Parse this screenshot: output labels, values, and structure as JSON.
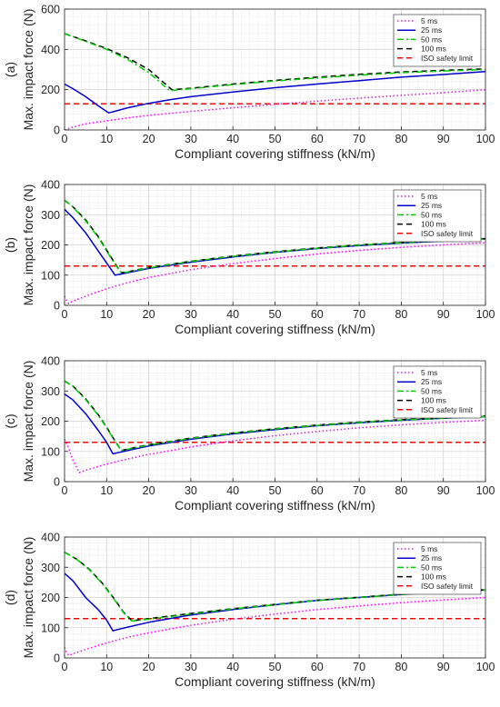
{
  "figure": {
    "panels_count": 4
  },
  "chart_data": [
    {
      "type": "line",
      "panel_label": "(a)",
      "xlabel": "Compliant covering stiffness (kN/m)",
      "ylabel": "Max. impact force (N)",
      "xlim": [
        0,
        100
      ],
      "ylim": [
        0,
        600
      ],
      "xticks": [
        0,
        10,
        20,
        30,
        40,
        50,
        60,
        70,
        80,
        90,
        100
      ],
      "yticks": [
        0,
        200,
        400,
        600
      ],
      "grid": true,
      "minor_grid": true,
      "legend_position": "top-right",
      "series": [
        {
          "name": "5 ms",
          "color": "#ff00ff",
          "dash": "dot",
          "x": [
            0,
            2,
            5,
            10,
            15,
            20,
            30,
            40,
            50,
            60,
            70,
            80,
            90,
            100
          ],
          "y": [
            0,
            14,
            30,
            45,
            60,
            72,
            92,
            110,
            127,
            143,
            158,
            172,
            185,
            200
          ]
        },
        {
          "name": "25 ms",
          "color": "#0000cc",
          "dash": "solid",
          "x": [
            0,
            2,
            5,
            8,
            10.5,
            12,
            15,
            20,
            25,
            30,
            40,
            50,
            60,
            70,
            80,
            90,
            100
          ],
          "y": [
            228,
            205,
            165,
            120,
            85,
            93,
            110,
            132,
            150,
            165,
            188,
            210,
            228,
            245,
            262,
            275,
            290
          ]
        },
        {
          "name": "50 ms",
          "color": "#00cc00",
          "dash": "dashdot",
          "x": [
            0,
            5,
            10,
            15,
            20,
            25,
            26,
            30,
            40,
            50,
            60,
            70,
            80,
            90,
            100
          ],
          "y": [
            478,
            440,
            400,
            350,
            285,
            195,
            197,
            205,
            225,
            243,
            258,
            272,
            284,
            293,
            300
          ]
        },
        {
          "name": "100 ms",
          "color": "#000000",
          "dash": "dash",
          "x": [
            0,
            5,
            10,
            15,
            20,
            25.5,
            30,
            40,
            50,
            60,
            70,
            80,
            90,
            100
          ],
          "y": [
            478,
            442,
            404,
            358,
            300,
            200,
            207,
            228,
            246,
            262,
            276,
            288,
            296,
            303
          ]
        },
        {
          "name": "ISO safety limit",
          "color": "#ff0000",
          "dash": "dash",
          "x": [
            0,
            100
          ],
          "y": [
            130,
            130
          ]
        }
      ]
    },
    {
      "type": "line",
      "panel_label": "(b)",
      "xlabel": "Compliant covering stiffness (kN/m)",
      "ylabel": "Max. impact force (N)",
      "xlim": [
        0,
        100
      ],
      "ylim": [
        0,
        400
      ],
      "xticks": [
        0,
        10,
        20,
        30,
        40,
        50,
        60,
        70,
        80,
        90,
        100
      ],
      "yticks": [
        0,
        100,
        200,
        300,
        400
      ],
      "grid": true,
      "minor_grid": true,
      "legend_position": "top-right",
      "series": [
        {
          "name": "5 ms",
          "color": "#ff00ff",
          "dash": "dot",
          "x": [
            0,
            0.5,
            1,
            2,
            5,
            10,
            15,
            20,
            30,
            40,
            50,
            60,
            70,
            80,
            90,
            100
          ],
          "y": [
            30,
            15,
            6,
            14,
            30,
            55,
            75,
            92,
            118,
            138,
            155,
            170,
            182,
            192,
            200,
            207
          ]
        },
        {
          "name": "25 ms",
          "color": "#0000cc",
          "dash": "solid",
          "x": [
            0,
            2,
            5,
            8,
            10,
            12,
            15,
            20,
            30,
            40,
            50,
            60,
            70,
            80,
            90,
            100
          ],
          "y": [
            318,
            290,
            240,
            180,
            140,
            100,
            108,
            122,
            143,
            160,
            175,
            188,
            198,
            206,
            213,
            220
          ]
        },
        {
          "name": "50 ms",
          "color": "#00cc00",
          "dash": "dashdot",
          "x": [
            0,
            2,
            5,
            8,
            10,
            12,
            13.5,
            15,
            20,
            30,
            40,
            50,
            60,
            70,
            80,
            90,
            100
          ],
          "y": [
            348,
            325,
            280,
            225,
            180,
            135,
            108,
            110,
            124,
            145,
            162,
            176,
            189,
            199,
            207,
            214,
            220
          ]
        },
        {
          "name": "100 ms",
          "color": "#000000",
          "dash": "dash",
          "x": [
            0,
            2,
            5,
            8,
            10,
            12,
            13.5,
            15,
            20,
            30,
            40,
            50,
            60,
            70,
            80,
            90,
            100
          ],
          "y": [
            348,
            326,
            283,
            228,
            183,
            138,
            108,
            111,
            125,
            146,
            163,
            177,
            190,
            200,
            208,
            215,
            221
          ]
        },
        {
          "name": "ISO safety limit",
          "color": "#ff0000",
          "dash": "dash",
          "x": [
            0,
            100
          ],
          "y": [
            130,
            130
          ]
        }
      ]
    },
    {
      "type": "line",
      "panel_label": "(c)",
      "xlabel": "Compliant covering stiffness (kN/m)",
      "ylabel": "Max. impact force (N)",
      "xlim": [
        0,
        100
      ],
      "ylim": [
        0,
        400
      ],
      "xticks": [
        0,
        10,
        20,
        30,
        40,
        50,
        60,
        70,
        80,
        90,
        100
      ],
      "yticks": [
        0,
        100,
        200,
        300,
        400
      ],
      "grid": true,
      "minor_grid": true,
      "legend_position": "top-right",
      "series": [
        {
          "name": "5 ms",
          "color": "#ff00ff",
          "dash": "dot",
          "x": [
            0,
            1,
            2,
            3.5,
            5,
            10,
            15,
            20,
            30,
            40,
            50,
            60,
            70,
            80,
            90,
            100
          ],
          "y": [
            140,
            110,
            70,
            30,
            38,
            58,
            75,
            90,
            115,
            135,
            152,
            166,
            178,
            188,
            196,
            203
          ]
        },
        {
          "name": "25 ms",
          "color": "#0000cc",
          "dash": "solid",
          "x": [
            0,
            2,
            5,
            8,
            10,
            11.5,
            15,
            20,
            30,
            40,
            50,
            60,
            70,
            80,
            90,
            100
          ],
          "y": [
            290,
            270,
            225,
            170,
            130,
            92,
            103,
            118,
            140,
            158,
            172,
            185,
            195,
            203,
            210,
            215
          ]
        },
        {
          "name": "50 ms",
          "color": "#00cc00",
          "dash": "dashdot",
          "x": [
            0,
            2,
            5,
            8,
            10,
            12,
            13.5,
            15,
            20,
            30,
            40,
            50,
            60,
            70,
            80,
            90,
            100
          ],
          "y": [
            333,
            315,
            272,
            220,
            178,
            132,
            103,
            107,
            121,
            143,
            160,
            174,
            186,
            196,
            204,
            210,
            216
          ]
        },
        {
          "name": "100 ms",
          "color": "#000000",
          "dash": "dash",
          "x": [
            0,
            2,
            5,
            8,
            10,
            12,
            13.5,
            15,
            20,
            30,
            40,
            50,
            60,
            70,
            80,
            90,
            100
          ],
          "y": [
            333,
            316,
            274,
            222,
            180,
            134,
            103,
            108,
            122,
            144,
            161,
            175,
            187,
            197,
            205,
            211,
            217
          ]
        },
        {
          "name": "ISO safety limit",
          "color": "#ff0000",
          "dash": "dash",
          "x": [
            0,
            100
          ],
          "y": [
            130,
            130
          ]
        }
      ]
    },
    {
      "type": "line",
      "panel_label": "(d)",
      "xlabel": "Compliant covering stiffness (kN/m)",
      "ylabel": "Max. impact force (N)",
      "xlim": [
        0,
        100
      ],
      "ylim": [
        0,
        400
      ],
      "xticks": [
        0,
        10,
        20,
        30,
        40,
        50,
        60,
        70,
        80,
        90,
        100
      ],
      "yticks": [
        0,
        100,
        200,
        300,
        400
      ],
      "grid": true,
      "minor_grid": true,
      "legend_position": "top-right",
      "series": [
        {
          "name": "5 ms",
          "color": "#ff00ff",
          "dash": "dot",
          "x": [
            0,
            0.5,
            1,
            2,
            5,
            10,
            15,
            20,
            30,
            40,
            50,
            60,
            70,
            80,
            90,
            100
          ],
          "y": [
            35,
            18,
            8,
            14,
            28,
            50,
            68,
            83,
            108,
            128,
            145,
            160,
            172,
            183,
            192,
            200
          ]
        },
        {
          "name": "25 ms",
          "color": "#0000cc",
          "dash": "solid",
          "x": [
            0,
            2,
            5,
            8,
            10,
            11.5,
            15,
            20,
            30,
            40,
            50,
            60,
            70,
            80,
            90,
            100
          ],
          "y": [
            280,
            255,
            200,
            160,
            125,
            90,
            102,
            118,
            142,
            160,
            176,
            190,
            200,
            210,
            218,
            225
          ]
        },
        {
          "name": "50 ms",
          "color": "#00cc00",
          "dash": "dashdot",
          "x": [
            0,
            3,
            6,
            9,
            12,
            14,
            16,
            20,
            30,
            40,
            50,
            60,
            70,
            80,
            90,
            100
          ],
          "y": [
            350,
            325,
            290,
            245,
            190,
            150,
            122,
            128,
            145,
            162,
            176,
            190,
            200,
            210,
            218,
            225
          ]
        },
        {
          "name": "100 ms",
          "color": "#000000",
          "dash": "dash",
          "x": [
            0,
            3,
            6,
            9,
            12,
            14,
            16,
            20,
            30,
            40,
            50,
            60,
            70,
            80,
            90,
            100
          ],
          "y": [
            350,
            326,
            292,
            247,
            192,
            152,
            123,
            130,
            147,
            163,
            177,
            191,
            201,
            211,
            219,
            226
          ]
        },
        {
          "name": "ISO safety limit",
          "color": "#ff0000",
          "dash": "dash",
          "x": [
            0,
            100
          ],
          "y": [
            130,
            130
          ]
        }
      ]
    }
  ]
}
